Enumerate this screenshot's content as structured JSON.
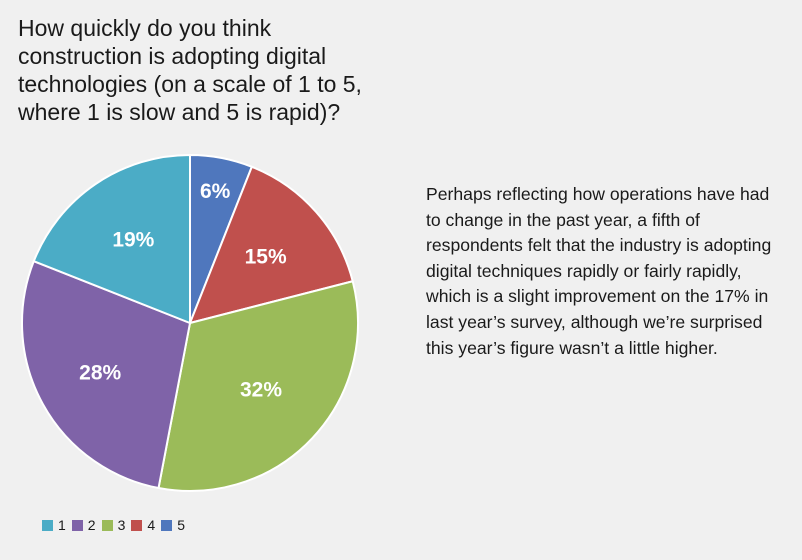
{
  "question": "How quickly do you think\nconstruction is adopting digital\ntechnologies (on a scale of 1 to 5,\nwhere 1 is slow and 5 is rapid)?",
  "commentary": "Perhaps reflecting how operations have had to change in the past year, a fifth of respondents felt that the industry is adopting digital techniques rapidly or fairly rapidly, which is a slight improvement on the 17% in last year’s survey, although we’re surprised this year’s figure wasn’t a little higher.",
  "chart_data": {
    "type": "pie",
    "title": "",
    "slices": [
      {
        "label": "5",
        "value": 6,
        "display": "6%",
        "color": "#4f77bd"
      },
      {
        "label": "4",
        "value": 15,
        "display": "15%",
        "color": "#c0504d"
      },
      {
        "label": "3",
        "value": 32,
        "display": "32%",
        "color": "#9bbb59"
      },
      {
        "label": "2",
        "value": 28,
        "display": "28%",
        "color": "#7f63a8"
      },
      {
        "label": "1",
        "value": 19,
        "display": "19%",
        "color": "#4bacc6"
      }
    ],
    "legend": {
      "placement": "bottom-left",
      "entries": [
        {
          "label": "1",
          "color": "#4bacc6"
        },
        {
          "label": "2",
          "color": "#7f63a8"
        },
        {
          "label": "3",
          "color": "#9bbb59"
        },
        {
          "label": "4",
          "color": "#c0504d"
        },
        {
          "label": "5",
          "color": "#4f77bd"
        }
      ]
    }
  }
}
